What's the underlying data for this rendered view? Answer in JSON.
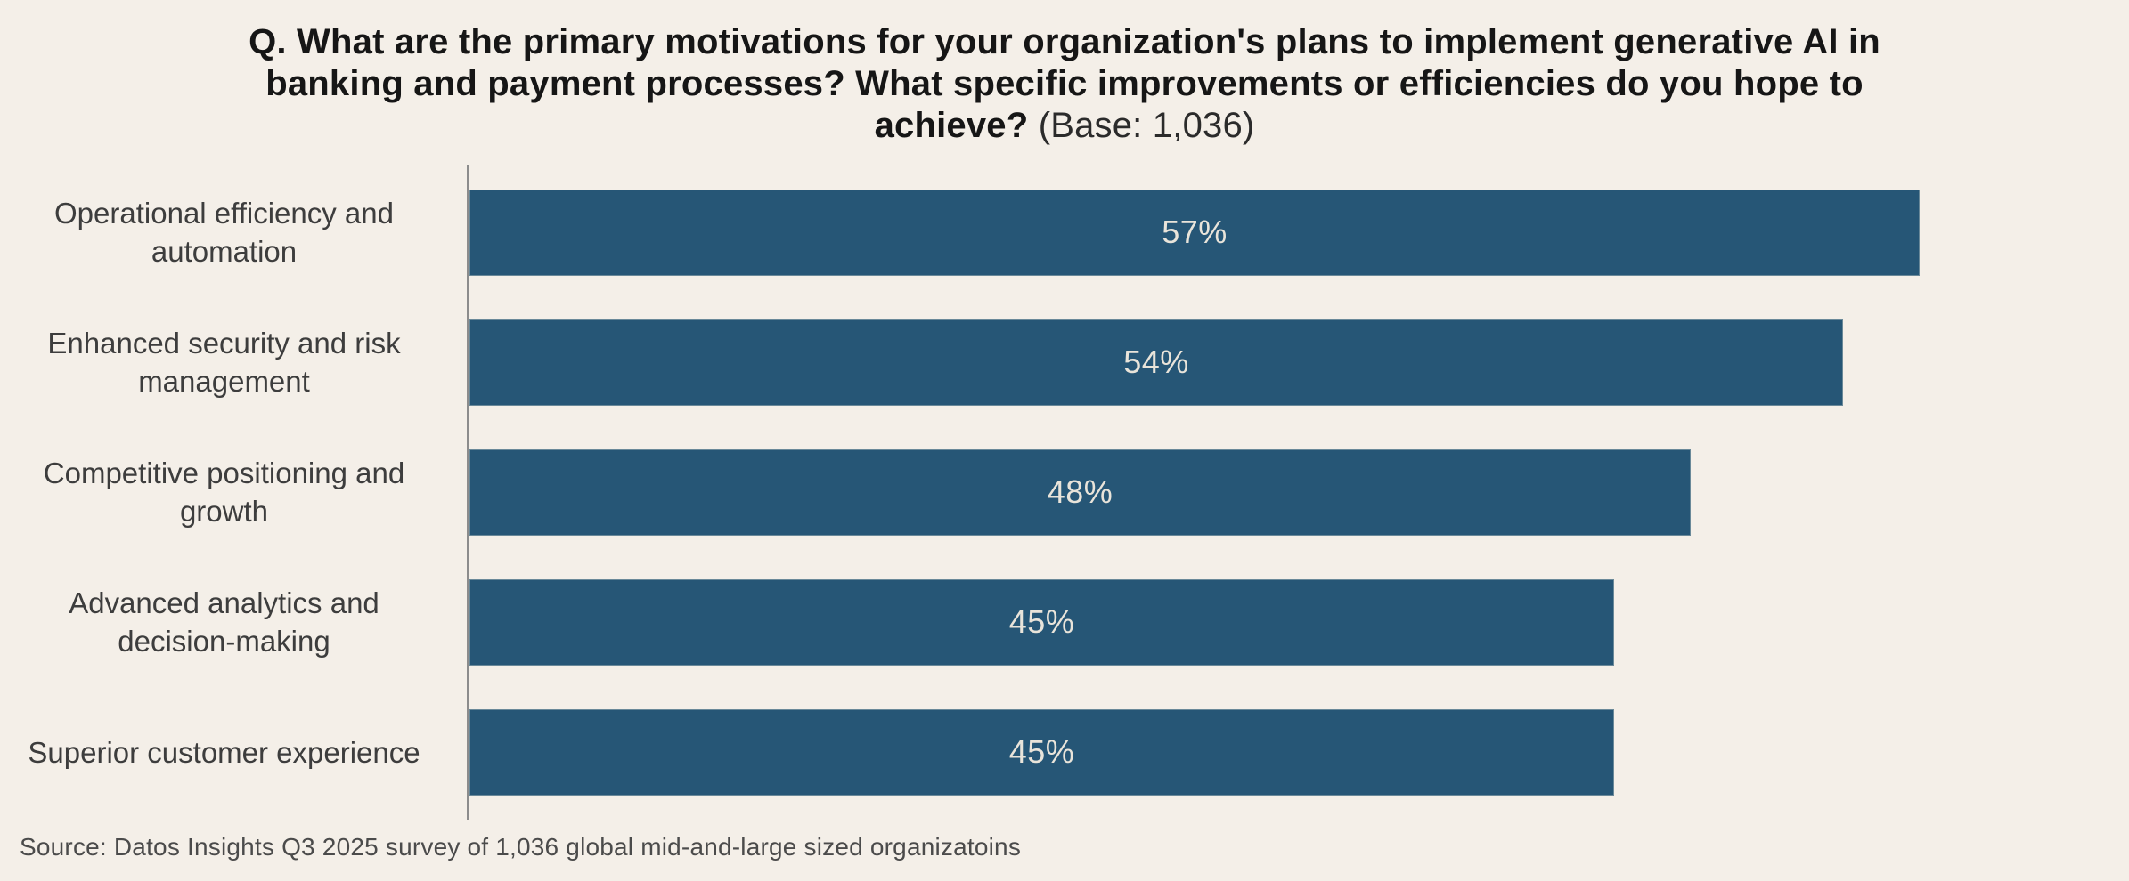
{
  "header": {
    "question_lines": "Q. What are the primary motivations for your organization's plans to implement generative AI in\nbanking and payment processes? What specific improvements or efficiencies do you hope to\nachieve?",
    "base_note": " (Base: 1,036)"
  },
  "footer": {
    "source": "Source: Datos Insights Q3 2025 survey of 1,036 global mid-and-large sized organizatoins"
  },
  "colors": {
    "background": "#f4efe8",
    "bar": "#265676",
    "bar_value_text": "#e9e4da",
    "axis": "#8c8c8c",
    "title_text": "#161616",
    "category_text": "#3d3d3d",
    "source_text": "#4b4b4b"
  },
  "chart_data": {
    "type": "bar",
    "orientation": "horizontal",
    "title": "Q. What are the primary motivations for your organization's plans to implement generative AI in banking and payment processes? What specific improvements or efficiencies do you hope to achieve? (Base: 1,036)",
    "categories": [
      "Operational efficiency and\nautomation",
      "Enhanced security and risk\nmanagement",
      "Competitive positioning and\ngrowth",
      "Advanced analytics and\ndecision-making",
      "Superior customer experience"
    ],
    "values": [
      57,
      54,
      48,
      45,
      45
    ],
    "value_labels": [
      "57%",
      "54%",
      "48%",
      "45%",
      "45%"
    ],
    "value_suffix": "%",
    "xlim": [
      0,
      60
    ],
    "grid": false,
    "legend": false,
    "value_label_position": "center-inside"
  }
}
